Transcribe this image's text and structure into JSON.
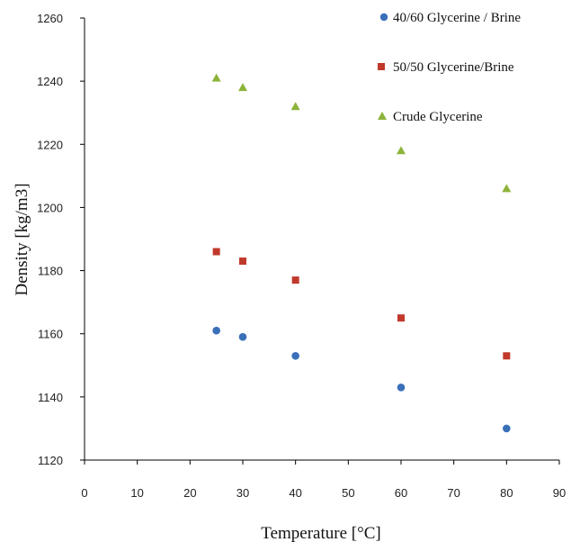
{
  "chart_data": {
    "type": "scatter",
    "title": "",
    "xlabel": "Temperature [°C]",
    "ylabel": "Density [kg/m3]",
    "xlim": [
      0,
      90
    ],
    "ylim": [
      1120,
      1260
    ],
    "xticks": [
      0,
      10,
      20,
      30,
      40,
      50,
      60,
      70,
      80,
      90
    ],
    "yticks": [
      1120,
      1140,
      1160,
      1180,
      1200,
      1220,
      1240,
      1260
    ],
    "grid": false,
    "legend_position": "top-right",
    "series": [
      {
        "name": "40/60 Glycerine / Brine",
        "marker": "circle",
        "color": "#3a70b8",
        "x": [
          25,
          30,
          40,
          60,
          80
        ],
        "y": [
          1161,
          1159,
          1153,
          1143,
          1130
        ]
      },
      {
        "name": "50/50 Glycerine/Brine",
        "marker": "square",
        "color": "#c0392b",
        "x": [
          25,
          30,
          40,
          60,
          80
        ],
        "y": [
          1186,
          1183,
          1177,
          1165,
          1153
        ]
      },
      {
        "name": "Crude Glycerine",
        "marker": "triangle",
        "color": "#8db33a",
        "x": [
          25,
          30,
          40,
          60,
          80
        ],
        "y": [
          1241,
          1238,
          1232,
          1218,
          1206
        ]
      }
    ]
  }
}
